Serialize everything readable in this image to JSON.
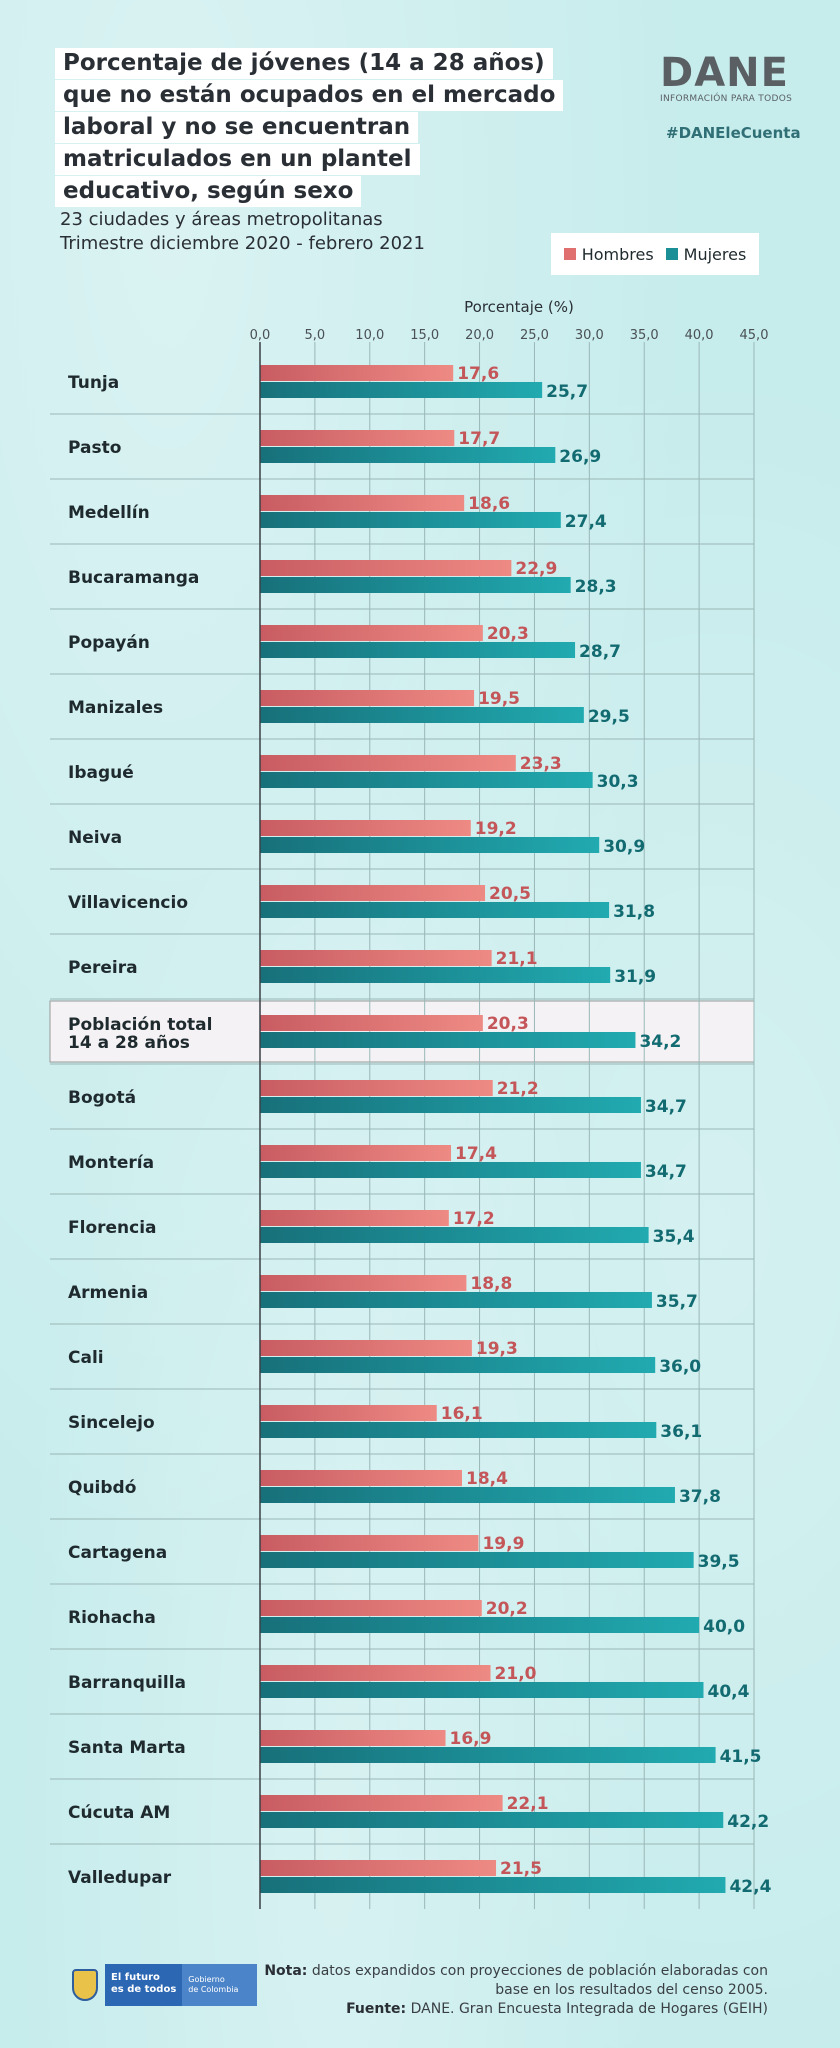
{
  "title_lines": [
    "Porcentaje de jóvenes (14 a 28 años)",
    "que no están ocupados en el mercado",
    "laboral y no se encuentran",
    "matriculados en un plantel",
    "educativo, según sexo"
  ],
  "subtitle_lines": [
    "23 ciudades y áreas metropolitanas",
    "Trimestre diciembre 2020 - febrero 2021"
  ],
  "logo": {
    "name": "DANE",
    "tagline": "INFORMACIÓN PARA TODOS"
  },
  "hashtag": "#DANEleCuenta",
  "colors": {
    "hombres": "#e07070",
    "mujeres": "#1b8f96",
    "background": "#c7ecec",
    "highlight_row": "#f4f2f4"
  },
  "chart_data": {
    "type": "bar",
    "orientation": "horizontal",
    "xlabel": "Porcentaje (%)",
    "xlim": [
      0,
      45
    ],
    "xticks": [
      "0,0",
      "5,0",
      "10,0",
      "15,0",
      "20,0",
      "25,0",
      "30,0",
      "35,0",
      "40,0",
      "45,0"
    ],
    "grid": true,
    "legend_position": "top-right",
    "highlight_category": "Población total 14 a 28 años",
    "categories": [
      "Tunja",
      "Pasto",
      "Medellín",
      "Bucaramanga",
      "Popayán",
      "Manizales",
      "Ibagué",
      "Neiva",
      "Villavicencio",
      "Pereira",
      "Población total 14 a 28 años",
      "Bogotá",
      "Montería",
      "Florencia",
      "Armenia",
      "Cali",
      "Sincelejo",
      "Quibdó",
      "Cartagena",
      "Riohacha",
      "Barranquilla",
      "Santa Marta",
      "Cúcuta AM",
      "Valledupar"
    ],
    "series": [
      {
        "name": "Hombres",
        "values": [
          17.6,
          17.7,
          18.6,
          22.9,
          20.3,
          19.5,
          23.3,
          19.2,
          20.5,
          21.1,
          20.3,
          21.2,
          17.4,
          17.2,
          18.8,
          19.3,
          16.1,
          18.4,
          19.9,
          20.2,
          21.0,
          16.9,
          22.1,
          21.5
        ],
        "labels": [
          "17,6",
          "17,7",
          "18,6",
          "22,9",
          "20,3",
          "19,5",
          "23,3",
          "19,2",
          "20,5",
          "21,1",
          "20,3",
          "21,2",
          "17,4",
          "17,2",
          "18,8",
          "19,3",
          "16,1",
          "18,4",
          "19,9",
          "20,2",
          "21,0",
          "16,9",
          "22,1",
          "21,5"
        ]
      },
      {
        "name": "Mujeres",
        "values": [
          25.7,
          26.9,
          27.4,
          28.3,
          28.7,
          29.5,
          30.3,
          30.9,
          31.8,
          31.9,
          34.2,
          34.7,
          34.7,
          35.4,
          35.7,
          36.0,
          36.1,
          37.8,
          39.5,
          40.0,
          40.4,
          41.5,
          42.2,
          42.4
        ],
        "labels": [
          "25,7",
          "26,9",
          "27,4",
          "28,3",
          "28,7",
          "29,5",
          "30,3",
          "30,9",
          "31,8",
          "31,9",
          "34,2",
          "34,7",
          "34,7",
          "35,4",
          "35,7",
          "36,0",
          "36,1",
          "37,8",
          "39,5",
          "40,0",
          "40,4",
          "41,5",
          "42,2",
          "42,4"
        ]
      }
    ]
  },
  "footer": {
    "gov_logo_line1": "El futuro",
    "gov_logo_line2": "es de todos",
    "gov_logo_line3": "Gobierno",
    "gov_logo_line4": "de Colombia",
    "note_label": "Nota:",
    "note_text": "datos expandidos con proyecciones de población elaboradas con base en los resultados del censo 2005.",
    "source_label": "Fuente:",
    "source_text": "DANE. Gran Encuesta Integrada de Hogares (GEIH)"
  }
}
